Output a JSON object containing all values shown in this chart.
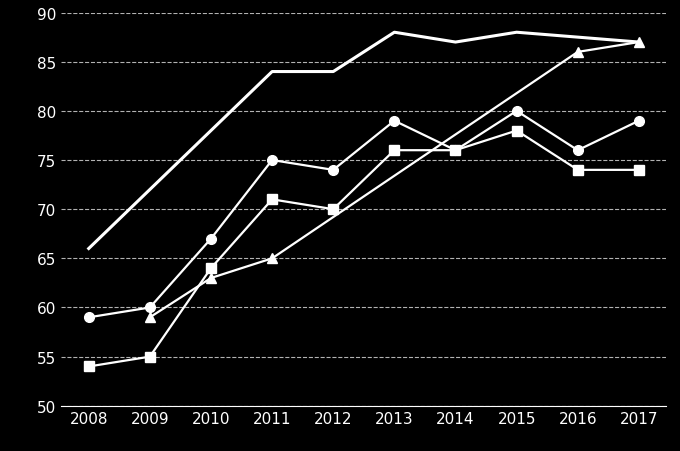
{
  "years": [
    2008,
    2009,
    2010,
    2011,
    2012,
    2013,
    2014,
    2015,
    2016,
    2017
  ],
  "line1": {
    "x": [
      2008,
      2011,
      2012,
      2013,
      2014,
      2015,
      2017
    ],
    "y": [
      66,
      84,
      84,
      88,
      87,
      88,
      87
    ],
    "color": "white",
    "marker": null,
    "linewidth": 2.2
  },
  "line2": {
    "x": [
      2008,
      2009,
      2010,
      2011,
      2012,
      2013,
      2014,
      2015,
      2016,
      2017
    ],
    "y": [
      59,
      60,
      67,
      75,
      74,
      79,
      76,
      80,
      76,
      79
    ],
    "color": "white",
    "marker": "o",
    "linewidth": 1.6
  },
  "line3": {
    "x": [
      2008,
      2009,
      2010,
      2011,
      2012,
      2013,
      2014,
      2015,
      2016,
      2017
    ],
    "y": [
      54,
      55,
      64,
      71,
      70,
      76,
      76,
      78,
      74,
      74
    ],
    "color": "white",
    "marker": "s",
    "linewidth": 1.6
  },
  "line4": {
    "x": [
      2009,
      2010,
      2011,
      2016,
      2017
    ],
    "y": [
      59,
      63,
      65,
      86,
      87
    ],
    "color": "white",
    "marker": "^",
    "linewidth": 1.6
  },
  "background_color": "#000000",
  "plot_bg_color": "#000000",
  "grid_color": "white",
  "text_color": "white",
  "ylim": [
    50,
    90
  ],
  "yticks": [
    50,
    55,
    60,
    65,
    70,
    75,
    80,
    85,
    90
  ],
  "xticks": [
    2008,
    2009,
    2010,
    2011,
    2012,
    2013,
    2014,
    2015,
    2016,
    2017
  ],
  "tick_fontsize": 11,
  "marker_size": 7
}
